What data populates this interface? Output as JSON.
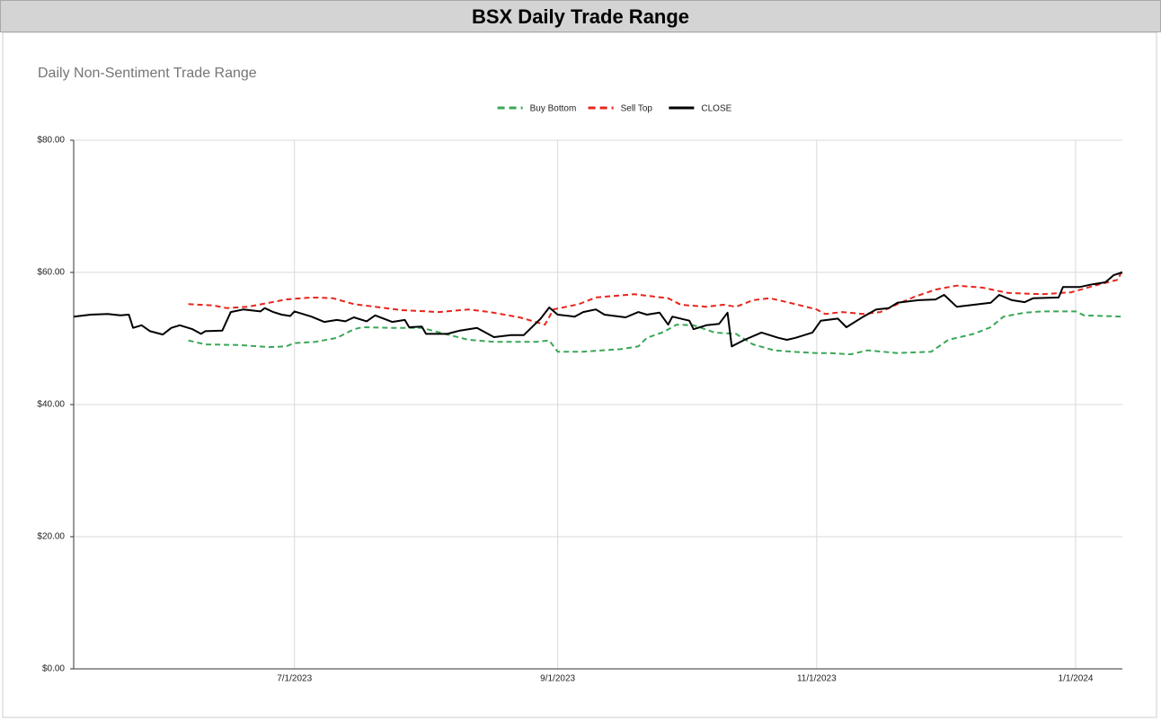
{
  "page_title": "BSX Daily Trade Range",
  "chart_data": {
    "type": "line",
    "title": "Daily Non-Sentiment Trade Range",
    "xlim": [
      "5/10/2023",
      "1/12/2024"
    ],
    "xticks": [
      "7/1/2023",
      "9/1/2023",
      "11/1/2023",
      "1/1/2024"
    ],
    "ylim": [
      0,
      80
    ],
    "yticks": [
      {
        "value": 0,
        "label": "$0.00"
      },
      {
        "value": 20,
        "label": "$20.00"
      },
      {
        "value": 40,
        "label": "$40.00"
      },
      {
        "value": 60,
        "label": "$60.00"
      },
      {
        "value": 80,
        "label": "$80.00"
      }
    ],
    "grid": true,
    "legend": "top",
    "series": [
      {
        "name": "Buy Bottom",
        "color": "#3aa757",
        "dashed": true,
        "x": [
          "6/6/2023",
          "6/10/2023",
          "6/18/2023",
          "6/25/2023",
          "6/29/2023",
          "7/1/2023",
          "7/6/2023",
          "7/11/2023",
          "7/15/2023",
          "7/17/2023",
          "7/24/2023",
          "7/31/2023",
          "8/6/2023",
          "8/11/2023",
          "8/17/2023",
          "8/27/2023",
          "8/30/2023",
          "9/1/2023",
          "9/7/2023",
          "9/16/2023",
          "9/20/2023",
          "9/22/2023",
          "9/26/2023",
          "9/29/2023",
          "10/3/2023",
          "10/8/2023",
          "10/13/2023",
          "10/17/2023",
          "10/22/2023",
          "10/26/2023",
          "11/1/2023",
          "11/4/2023",
          "11/9/2023",
          "11/13/2023",
          "11/20/2023",
          "11/28/2023",
          "12/2/2023",
          "12/8/2023",
          "12/12/2023",
          "12/15/2023",
          "12/20/2023",
          "12/24/2023",
          "1/1/2024",
          "1/3/2024",
          "1/12/2024"
        ],
        "values": [
          49.7,
          49.1,
          49.0,
          48.7,
          48.8,
          49.3,
          49.5,
          50.1,
          51.4,
          51.7,
          51.6,
          51.6,
          50.6,
          49.8,
          49.5,
          49.5,
          49.7,
          48.0,
          48.0,
          48.4,
          48.8,
          50.1,
          51.0,
          52.1,
          52.0,
          50.9,
          50.7,
          49.1,
          48.2,
          48.0,
          47.8,
          47.8,
          47.6,
          48.2,
          47.8,
          48.0,
          49.8,
          50.7,
          51.7,
          53.3,
          53.9,
          54.1,
          54.1,
          53.5,
          53.3
        ]
      },
      {
        "name": "Sell Top",
        "color": "#e8251c",
        "dashed": true,
        "x": [
          "6/6/2023",
          "6/12/2023",
          "6/15/2023",
          "6/20/2023",
          "6/25/2023",
          "6/29/2023",
          "7/5/2023",
          "7/10/2023",
          "7/15/2023",
          "7/20/2023",
          "7/26/2023",
          "8/4/2023",
          "8/11/2023",
          "8/16/2023",
          "8/23/2023",
          "8/29/2023",
          "8/31/2023",
          "9/6/2023",
          "9/10/2023",
          "9/19/2023",
          "9/27/2023",
          "9/30/2023",
          "10/6/2023",
          "10/10/2023",
          "10/13/2023",
          "10/17/2023",
          "10/21/2023",
          "10/27/2023",
          "11/1/2023",
          "11/3/2023",
          "11/7/2023",
          "11/12/2023",
          "11/16/2023",
          "11/20/2023",
          "11/24/2023",
          "11/29/2023",
          "12/4/2023",
          "12/10/2023",
          "12/16/2023",
          "12/24/2023",
          "12/31/2023",
          "1/6/2024",
          "1/11/2024",
          "1/12/2024"
        ],
        "values": [
          55.2,
          55.0,
          54.6,
          54.8,
          55.4,
          55.9,
          56.2,
          56.1,
          55.2,
          54.8,
          54.3,
          54.0,
          54.4,
          54.0,
          53.2,
          52.1,
          54.4,
          55.2,
          56.2,
          56.7,
          56.1,
          55.1,
          54.8,
          55.1,
          54.8,
          55.8,
          56.1,
          55.2,
          54.4,
          53.7,
          54.0,
          53.7,
          54.0,
          55.2,
          56.3,
          57.4,
          58.0,
          57.7,
          56.9,
          56.7,
          57.0,
          58.1,
          58.9,
          60.5
        ]
      },
      {
        "name": "CLOSE",
        "color": "#000000",
        "dashed": false,
        "x": [
          "5/10/2023",
          "5/14/2023",
          "5/18/2023",
          "5/21/2023",
          "5/23/2023",
          "5/24/2023",
          "5/26/2023",
          "5/28/2023",
          "5/31/2023",
          "6/2/2023",
          "6/4/2023",
          "6/7/2023",
          "6/9/2023",
          "6/10/2023",
          "6/14/2023",
          "6/16/2023",
          "6/19/2023",
          "6/23/2023",
          "6/24/2023",
          "6/26/2023",
          "6/28/2023",
          "6/30/2023",
          "7/1/2023",
          "7/5/2023",
          "7/8/2023",
          "7/11/2023",
          "7/13/2023",
          "7/15/2023",
          "7/18/2023",
          "7/20/2023",
          "7/24/2023",
          "7/27/2023",
          "7/28/2023",
          "7/31/2023",
          "8/1/2023",
          "8/6/2023",
          "8/9/2023",
          "8/13/2023",
          "8/15/2023",
          "8/17/2023",
          "8/21/2023",
          "8/24/2023",
          "8/28/2023",
          "8/30/2023",
          "9/1/2023",
          "9/5/2023",
          "9/7/2023",
          "9/10/2023",
          "9/12/2023",
          "9/17/2023",
          "9/20/2023",
          "9/22/2023",
          "9/25/2023",
          "9/27/2023",
          "9/28/2023",
          "10/2/2023",
          "10/3/2023",
          "10/6/2023",
          "10/9/2023",
          "10/11/2023",
          "10/12/2023",
          "10/15/2023",
          "10/19/2023",
          "10/23/2023",
          "10/25/2023",
          "10/27/2023",
          "10/31/2023",
          "11/2/2023",
          "11/6/2023",
          "11/8/2023",
          "11/12/2023",
          "11/15/2023",
          "11/18/2023",
          "11/20/2023",
          "11/25/2023",
          "11/29/2023",
          "12/1/2023",
          "12/4/2023",
          "12/8/2023",
          "12/12/2023",
          "12/14/2023",
          "12/17/2023",
          "12/20/2023",
          "12/22/2023",
          "12/28/2023",
          "12/29/2023",
          "1/2/2024",
          "1/5/2024",
          "1/8/2024",
          "1/10/2024",
          "1/12/2024"
        ],
        "values": [
          53.3,
          53.6,
          53.7,
          53.5,
          53.6,
          51.6,
          52.0,
          51.1,
          50.6,
          51.6,
          52.0,
          51.4,
          50.7,
          51.1,
          51.2,
          54.0,
          54.4,
          54.1,
          54.6,
          54.0,
          53.6,
          53.4,
          54.1,
          53.3,
          52.5,
          52.8,
          52.6,
          53.2,
          52.6,
          53.5,
          52.5,
          52.8,
          51.7,
          51.8,
          50.7,
          50.7,
          51.2,
          51.6,
          50.9,
          50.2,
          50.5,
          50.5,
          53.0,
          54.7,
          53.6,
          53.3,
          54.0,
          54.4,
          53.6,
          53.2,
          54.0,
          53.6,
          53.9,
          52.1,
          53.3,
          52.7,
          51.4,
          52.0,
          52.2,
          53.9,
          48.8,
          49.8,
          50.9,
          50.1,
          49.8,
          50.1,
          50.9,
          52.7,
          53.0,
          51.7,
          53.3,
          54.4,
          54.6,
          55.4,
          55.8,
          55.9,
          56.6,
          54.8,
          55.1,
          55.4,
          56.6,
          55.8,
          55.5,
          56.1,
          56.2,
          57.8,
          57.8,
          58.2,
          58.5,
          59.6,
          60.0
        ]
      }
    ]
  }
}
